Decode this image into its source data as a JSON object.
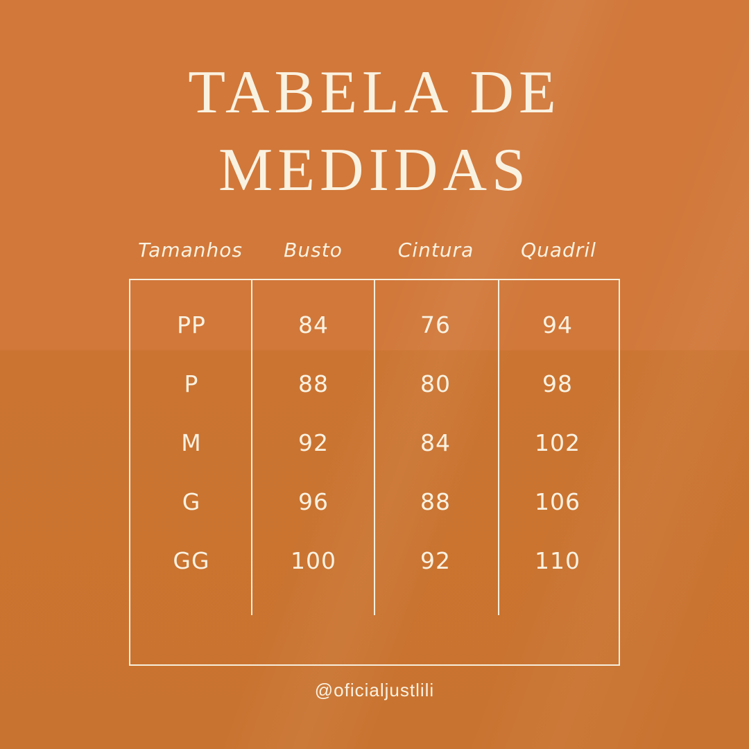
{
  "poster": {
    "title_line1": "TABELA DE",
    "title_line2": "MEDIDAS",
    "footer_handle": "@oficialjustlili"
  },
  "chart_data": {
    "type": "table",
    "title": "TABELA DE MEDIDAS",
    "columns": [
      "Tamanhos",
      "Busto",
      "Cintura",
      "Quadril"
    ],
    "rows": [
      [
        "PP",
        "84",
        "76",
        "94"
      ],
      [
        "P",
        "88",
        "80",
        "98"
      ],
      [
        "M",
        "92",
        "84",
        "102"
      ],
      [
        "G",
        "96",
        "88",
        "106"
      ],
      [
        "GG",
        "100",
        "92",
        "110"
      ]
    ],
    "layout_hints": {
      "grid": "outer border + vertical column dividers only, no horizontal row lines",
      "legend_position": "none"
    }
  },
  "colors": {
    "background_orange": "#CF7532",
    "text_cream": "#FAF2E1",
    "table_border_cream": "#F7EFDE"
  }
}
